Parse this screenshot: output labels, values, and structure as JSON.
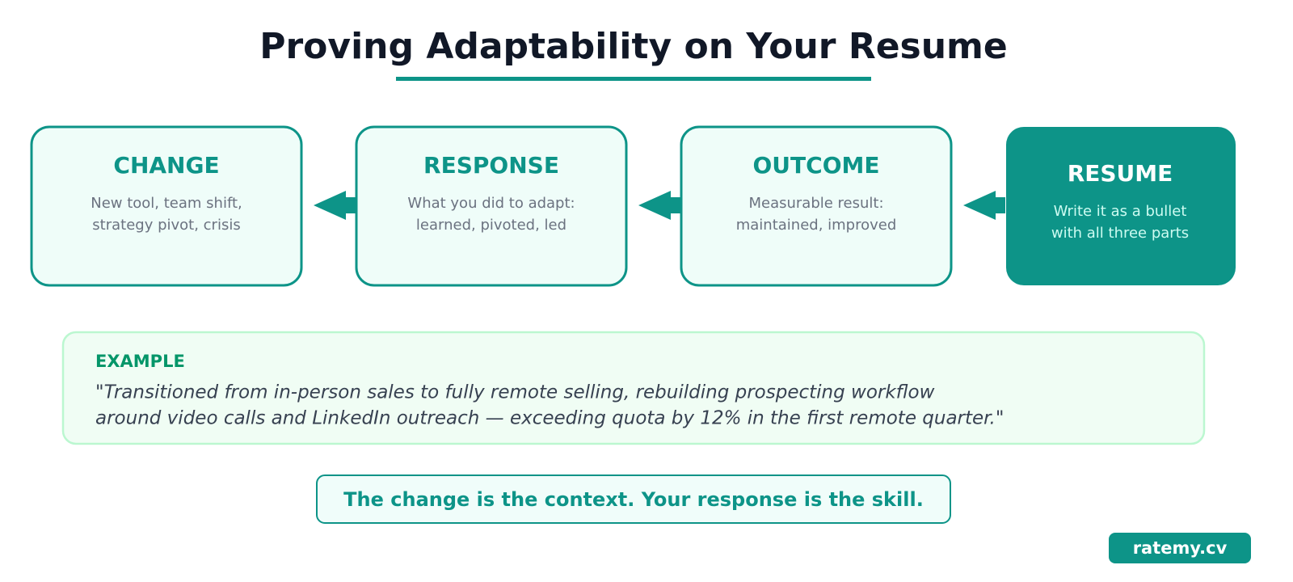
{
  "header": {
    "title": "Proving Adaptability on Your Resume"
  },
  "steps": [
    {
      "title": "CHANGE",
      "lines": [
        "New tool, team shift,",
        "strategy pivot, crisis"
      ]
    },
    {
      "title": "RESPONSE",
      "lines": [
        "What you did to adapt:",
        "learned, pivoted, led"
      ]
    },
    {
      "title": "OUTCOME",
      "lines": [
        "Measurable result:",
        "maintained, improved"
      ]
    },
    {
      "title": "RESUME",
      "lines": [
        "Write it as a bullet",
        "with all three parts"
      ]
    }
  ],
  "example": {
    "label": "EXAMPLE",
    "lines": [
      "\"Transitioned from in-person sales to fully remote selling, rebuilding prospecting workflow",
      "around video calls and LinkedIn outreach — exceeding quota by 12% in the first remote quarter.\""
    ]
  },
  "tagline": "The change is the context. Your response is the skill.",
  "brand": "ratemy.cv"
}
